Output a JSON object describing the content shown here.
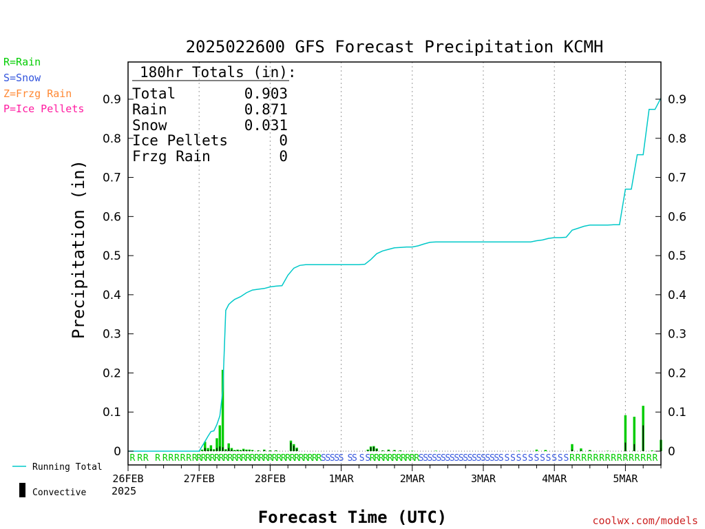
{
  "chart_data": {
    "type": "bar",
    "title": "2025022600 GFS Forecast Precipitation KCMH",
    "xlabel": "Forecast Time (UTC)",
    "ylabel": "Precipitation (in)",
    "ylim": [
      0,
      1
    ],
    "grid": "vertical-dotted",
    "x_categories": [
      "26FEB",
      "27FEB",
      "28FEB",
      "1MAR",
      "2MAR",
      "3MAR",
      "4MAR",
      "5MAR"
    ],
    "x_year": "2025",
    "y_ticks": [
      0,
      0.1,
      0.2,
      0.3,
      0.4,
      0.5,
      0.6,
      0.7,
      0.8,
      0.9
    ],
    "y_tick_labels": [
      "0",
      "0.1",
      "0.2",
      "0.3",
      "0.4",
      "0.5",
      "0.6",
      "0.7",
      "0.8",
      "0.9"
    ],
    "totals_box": {
      "header": "180hr Totals (in):",
      "rows": [
        {
          "label": "Total",
          "value": "0.903"
        },
        {
          "label": "Rain",
          "value": "0.871"
        },
        {
          "label": "Snow",
          "value": "0.031"
        },
        {
          "label": "Ice Pellets",
          "value": "0"
        },
        {
          "label": "Frzg Rain",
          "value": "0"
        }
      ]
    },
    "type_legend": [
      {
        "text": "R=Rain",
        "color": "#00cc00"
      },
      {
        "text": "S=Snow",
        "color": "#3355dd"
      },
      {
        "text": "Z=Frzg Rain",
        "color": "#ff8833"
      },
      {
        "text": "P=Ice Pellets",
        "color": "#ff1aa0"
      }
    ],
    "line_legend": "Running Total",
    "bar_legend": "Convective",
    "credit": "coolwx.com/models",
    "running_total": {
      "name": "Running Total",
      "color": "#00c8c8",
      "x_hours": [
        0,
        24,
        26,
        27,
        28,
        29,
        30,
        31,
        32,
        33,
        34,
        35,
        36,
        38,
        40,
        42,
        44,
        46,
        48,
        50,
        52,
        54,
        56,
        58,
        60,
        61,
        62,
        63,
        64,
        66,
        68,
        70,
        72,
        74,
        76,
        78,
        80,
        82,
        84,
        86,
        88,
        90,
        92,
        94,
        96,
        98,
        100,
        102,
        104,
        106,
        108,
        110,
        112,
        114,
        116,
        118,
        120,
        122,
        124,
        126,
        128,
        130,
        132,
        134,
        136,
        138,
        140,
        142,
        144,
        146,
        148,
        150,
        152,
        154,
        156,
        158,
        160,
        162,
        164,
        166,
        168,
        170,
        172,
        174,
        176,
        178,
        180
      ],
      "values": [
        0,
        0,
        0.025,
        0.038,
        0.05,
        0.052,
        0.068,
        0.09,
        0.155,
        0.36,
        0.375,
        0.382,
        0.388,
        0.395,
        0.405,
        0.412,
        0.414,
        0.416,
        0.42,
        0.422,
        0.423,
        0.45,
        0.468,
        0.475,
        0.477,
        0.477,
        0.477,
        0.477,
        0.477,
        0.477,
        0.477,
        0.477,
        0.477,
        0.477,
        0.477,
        0.477,
        0.478,
        0.49,
        0.505,
        0.512,
        0.516,
        0.52,
        0.521,
        0.522,
        0.522,
        0.525,
        0.53,
        0.534,
        0.535,
        0.535,
        0.535,
        0.535,
        0.535,
        0.535,
        0.535,
        0.535,
        0.535,
        0.535,
        0.535,
        0.535,
        0.535,
        0.535,
        0.535,
        0.535,
        0.535,
        0.538,
        0.54,
        0.544,
        0.546,
        0.546,
        0.547,
        0.565,
        0.57,
        0.575,
        0.578,
        0.578,
        0.578,
        0.578,
        0.579,
        0.579,
        0.67,
        0.67,
        0.758,
        0.758,
        0.874,
        0.874,
        0.903
      ]
    },
    "bars": {
      "name": "6hr precipitation",
      "color": "#00cc00",
      "convective_color": "#000000",
      "x_hours": [
        25,
        26,
        27,
        28,
        29,
        30,
        31,
        32,
        33,
        34,
        35,
        36,
        37,
        38,
        39,
        40,
        41,
        42,
        44,
        46,
        48,
        50,
        55,
        56,
        57,
        81,
        82,
        83,
        84,
        86,
        88,
        90,
        92,
        96,
        104,
        132,
        138,
        141,
        150,
        153,
        156,
        162,
        168,
        171,
        174,
        177,
        180
      ],
      "values": [
        0.004,
        0.024,
        0.008,
        0.015,
        0.005,
        0.033,
        0.066,
        0.208,
        0.005,
        0.02,
        0.008,
        0.003,
        0.004,
        0.003,
        0.006,
        0.004,
        0.004,
        0.003,
        0.002,
        0.004,
        0.002,
        0.002,
        0.027,
        0.018,
        0.009,
        0.004,
        0.012,
        0.013,
        0.007,
        0.002,
        0.004,
        0.003,
        0.002,
        0.001,
        0.001,
        0.001,
        0.004,
        0.003,
        0.018,
        0.007,
        0.003,
        0.001,
        0.092,
        0.088,
        0.116,
        0.002,
        0.029
      ],
      "convective": [
        0.001,
        0.008,
        0.003,
        0.005,
        0.002,
        0.008,
        0.012,
        0.01,
        0.002,
        0.008,
        0.004,
        0.001,
        0.002,
        0.001,
        0.003,
        0.002,
        0.002,
        0.001,
        0.001,
        0.002,
        0.001,
        0.001,
        0.022,
        0.014,
        0.006,
        0.002,
        0.01,
        0.011,
        0.005,
        0.001,
        0.002,
        0.001,
        0.001,
        0,
        0,
        0,
        0,
        0,
        0.004,
        0.002,
        0.001,
        0,
        0.022,
        0.018,
        0.066,
        0,
        0.008
      ]
    },
    "type_row": {
      "text_hours": [
        1.5,
        4,
        6,
        10,
        12.5,
        14.5,
        16.5,
        18.5,
        20.5,
        22.5,
        24,
        25.5,
        27,
        28.5,
        30,
        31.5,
        33,
        34.5,
        36,
        37.5,
        39,
        40.5,
        42,
        43.5,
        45,
        46.5,
        48,
        49.5,
        51,
        52.5,
        54,
        55.5,
        57,
        58.5,
        60,
        61.5,
        63,
        64.5,
        66,
        67.5,
        69,
        70.5,
        72,
        75,
        76.5,
        79,
        81,
        82.5,
        84,
        85.5,
        87,
        88.5,
        90,
        91.5,
        93,
        94.5,
        96,
        97.5,
        99,
        100.5,
        102,
        103.5,
        105,
        106.5,
        108,
        109.5,
        111,
        112.5,
        114,
        115.5,
        117,
        118.5,
        120,
        121.5,
        123,
        124.5,
        126,
        128,
        130,
        132,
        134,
        136,
        138,
        140,
        142,
        144,
        146,
        148,
        150,
        152,
        154,
        156,
        158,
        160,
        162,
        164,
        166,
        168,
        170,
        172,
        174,
        176,
        178
      ],
      "text_types": [
        "R",
        "R",
        "R",
        "R",
        "R",
        "R",
        "R",
        "R",
        "R",
        "R",
        "R",
        "R",
        "R",
        "R",
        "R",
        "R",
        "R",
        "R",
        "R",
        "R",
        "R",
        "R",
        "R",
        "R",
        "R",
        "R",
        "R",
        "R",
        "R",
        "R",
        "R",
        "R",
        "R",
        "R",
        "R",
        "R",
        "R",
        "R",
        "S",
        "S",
        "S",
        "S",
        "S",
        "S",
        "S",
        "S",
        "S",
        "R",
        "R",
        "R",
        "R",
        "R",
        "R",
        "R",
        "R",
        "R",
        "R",
        "R",
        "S",
        "S",
        "S",
        "S",
        "S",
        "S",
        "S",
        "S",
        "S",
        "S",
        "S",
        "S",
        "S",
        "S",
        "S",
        "S",
        "S",
        "S",
        "S",
        "S",
        "S",
        "S",
        "S",
        "S",
        "S",
        "S",
        "S",
        "S",
        "S",
        "S",
        "R",
        "R",
        "R",
        "R",
        "R",
        "R",
        "R",
        "R",
        "R",
        "R",
        "R",
        "R",
        "R",
        "R",
        "R"
      ]
    }
  }
}
